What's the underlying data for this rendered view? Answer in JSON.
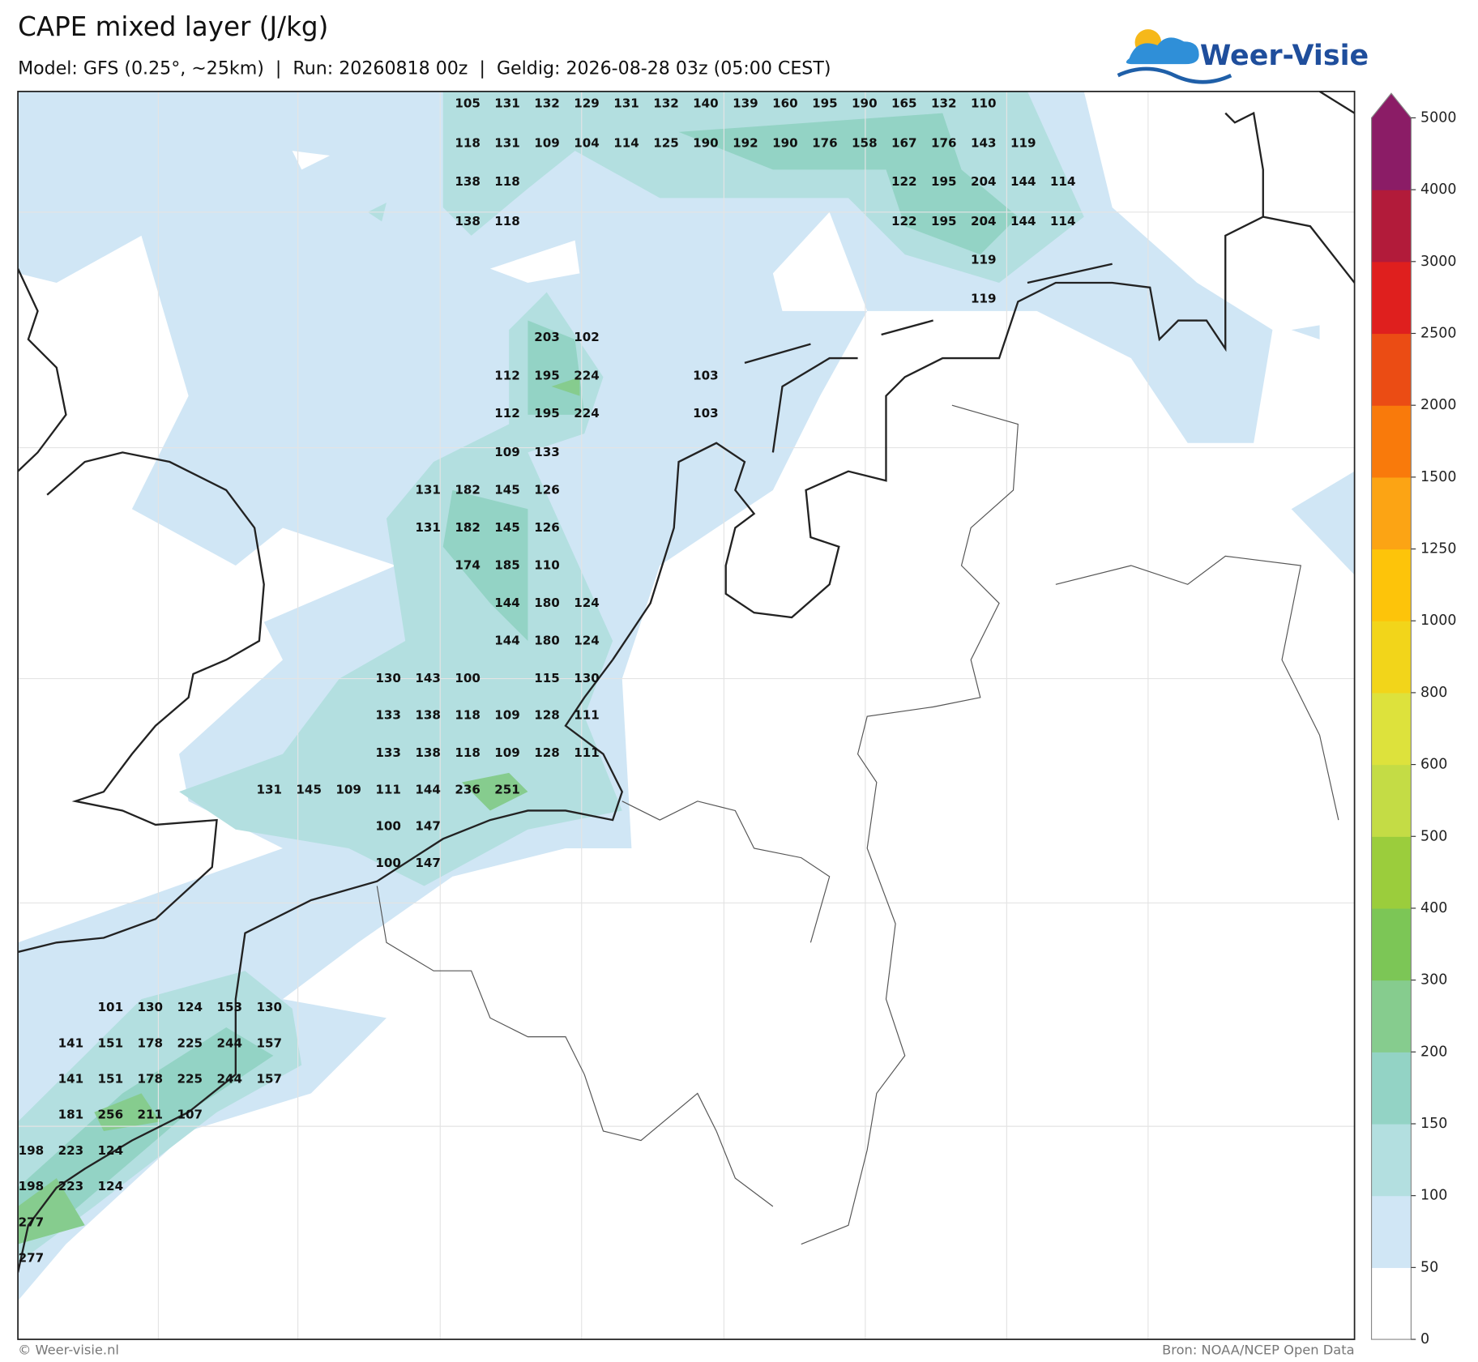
{
  "header": {
    "title": "CAPE mixed layer (J/kg)",
    "subtitle": "Model: GFS (0.25°, ~25km)  |  Run: 20260818 00z  |  Geldig: 2026-08-28 03z (05:00 CEST)",
    "logo": "Weer-Visie"
  },
  "map": {
    "cape_rows": [
      [
        105,
        131,
        132,
        129,
        131,
        132,
        140,
        139,
        160,
        195,
        190,
        165,
        132,
        110
      ],
      [
        118,
        131,
        109,
        104,
        114,
        125,
        190,
        192,
        190,
        176,
        158,
        167,
        176,
        143,
        119
      ],
      [
        138,
        118,
        122,
        195,
        204,
        144,
        114
      ],
      [
        138,
        118,
        122,
        195,
        204,
        144,
        114
      ],
      [
        119
      ],
      [
        119
      ],
      [
        203,
        102
      ],
      [
        112,
        195,
        224,
        103
      ],
      [
        112,
        195,
        224,
        103
      ],
      [
        109,
        133
      ],
      [
        131,
        182,
        145,
        126
      ],
      [
        131,
        182,
        145,
        126
      ],
      [
        174,
        185,
        110
      ],
      [
        144,
        180,
        124
      ],
      [
        144,
        180,
        124
      ],
      [
        130,
        143,
        100,
        115,
        130
      ],
      [
        133,
        138,
        118,
        109,
        128,
        111
      ],
      [
        133,
        138,
        118,
        109,
        128,
        111
      ],
      [
        131,
        145,
        109,
        111,
        144,
        236,
        251
      ],
      [
        100,
        147
      ],
      [
        100,
        147
      ],
      [
        101,
        130,
        124,
        153,
        130
      ],
      [
        141,
        151,
        178,
        225,
        244,
        157
      ],
      [
        141,
        151,
        178,
        225,
        244,
        157
      ],
      [
        181,
        256,
        211,
        107
      ],
      [
        198,
        223,
        124
      ],
      [
        198,
        223,
        124
      ],
      [
        277
      ],
      [
        277
      ]
    ]
  },
  "colorbar": {
    "ticks": [
      0,
      50,
      100,
      150,
      200,
      300,
      400,
      500,
      600,
      800,
      1000,
      1250,
      1500,
      2000,
      2500,
      3000,
      4000,
      5000
    ],
    "colors": [
      "#ffffff",
      "#d0e6f5",
      "#b3dfe0",
      "#93d3c5",
      "#86cc8e",
      "#7cc656",
      "#9bcd3c",
      "#c4dc45",
      "#dde23c",
      "#f2d51a",
      "#fdc40a",
      "#fca414",
      "#f97a0b",
      "#eb4c14",
      "#df1f1e",
      "#b21b3a",
      "#8b1c66"
    ]
  },
  "footer": {
    "copyright": "© Weer-visie.nl",
    "source": "Bron: NOAA/NCEP Open Data"
  }
}
